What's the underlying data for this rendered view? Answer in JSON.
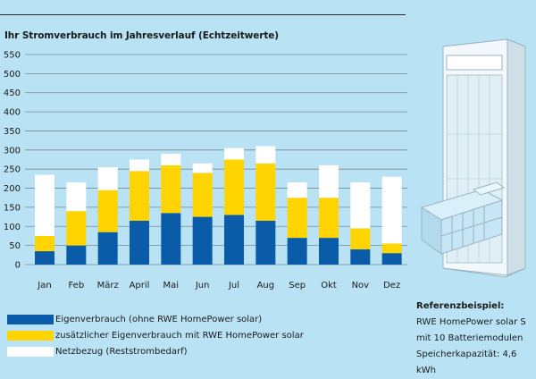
{
  "colors": {
    "background": "#b9e3f5",
    "grid": "#7a8a92",
    "eigenverbrauch": "#0a5ca8",
    "zusaetzlich": "#ffd400",
    "netzbezug": "#ffffff"
  },
  "chart_data": {
    "type": "bar",
    "stacked": true,
    "title": "Ihr Stromverbrauch im Jahresverlauf (Echtzeitwerte)",
    "categories": [
      "Jan",
      "Feb",
      "März",
      "April",
      "Mai",
      "Jun",
      "Jul",
      "Aug",
      "Sep",
      "Okt",
      "Nov",
      "Dez"
    ],
    "ylim": [
      0,
      550
    ],
    "yticks": [
      "0",
      "50",
      "100",
      "150",
      "200",
      "250",
      "300",
      "350",
      "400",
      "450",
      "500",
      "550"
    ],
    "grid": true,
    "series": [
      {
        "name": "Eigenverbrauch (ohne RWE HomePower solar)",
        "color": "#0a5ca8",
        "values": [
          35,
          50,
          85,
          115,
          135,
          125,
          130,
          115,
          70,
          70,
          40,
          30
        ]
      },
      {
        "name": "zusätzlicher Eigenverbrauch mit RWE HomePower solar",
        "color": "#ffd400",
        "values": [
          40,
          90,
          110,
          130,
          125,
          115,
          145,
          150,
          105,
          105,
          55,
          25
        ]
      },
      {
        "name": "Netzbezug (Reststrombedarf)",
        "color": "#ffffff",
        "values": [
          160,
          75,
          60,
          30,
          30,
          25,
          30,
          45,
          40,
          85,
          120,
          175
        ]
      }
    ]
  },
  "reference": {
    "title": "Referenzbeispiel:",
    "line1": "RWE HomePower solar S",
    "line2": "mit 10 Batteriemodulen",
    "line3": "Speicherkapazität: 4,6 kWh"
  }
}
